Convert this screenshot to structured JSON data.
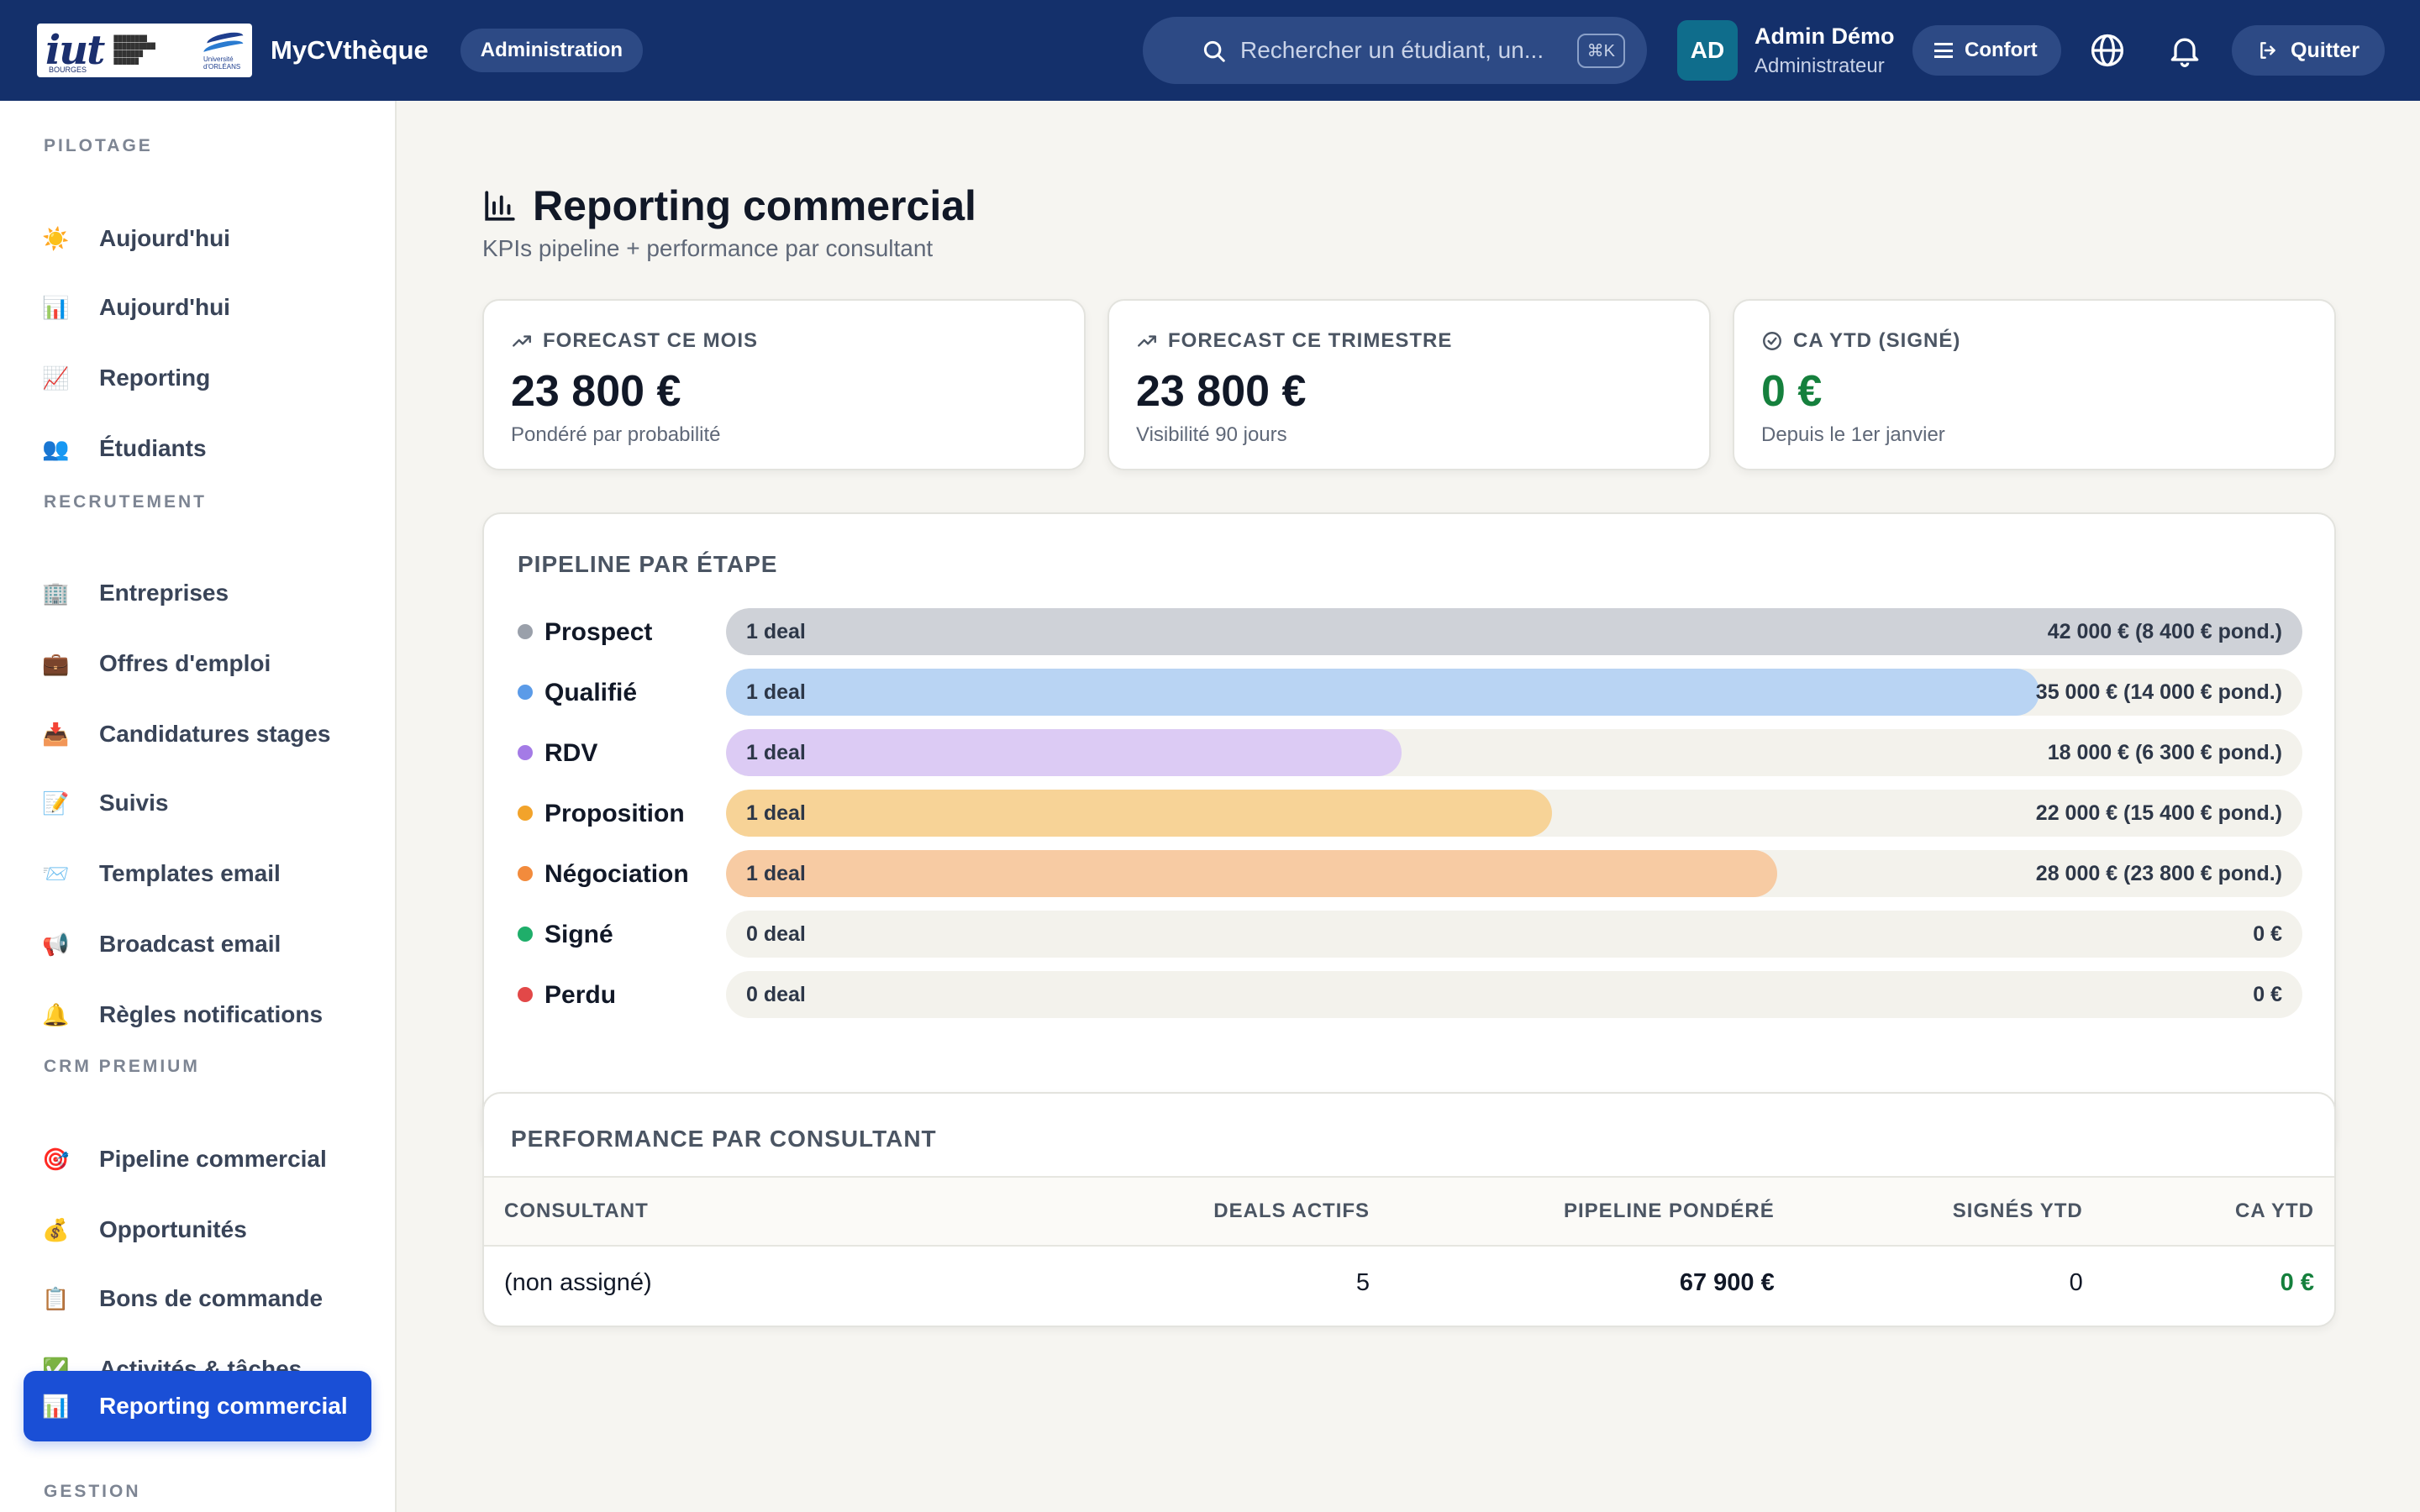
{
  "topbar": {
    "brand": "MyCVthèque",
    "badge": "Administration",
    "search_placeholder": "Rechercher un étudiant, un...",
    "search_shortcut": "⌘K",
    "avatar_initials": "AD",
    "user_name": "Admin Démo",
    "user_role": "Administrateur",
    "comfort_label": "Confort",
    "quit_label": "Quitter",
    "logo": {
      "text": "iut",
      "sub": "BOURGES",
      "university": "Université d'ORLÉANS"
    }
  },
  "sidebar": {
    "sections": [
      "PILOTAGE",
      "RECRUTEMENT",
      "CRM PREMIUM",
      "GESTION"
    ],
    "items": [
      {
        "icon": "☀️",
        "label": "Aujourd'hui"
      },
      {
        "icon": "📊",
        "label": "Aujourd'hui"
      },
      {
        "icon": "📈",
        "label": "Reporting"
      },
      {
        "icon": "👥",
        "label": "Étudiants"
      },
      {
        "icon": "🏢",
        "label": "Entreprises"
      },
      {
        "icon": "💼",
        "label": "Offres d'emploi"
      },
      {
        "icon": "📥",
        "label": "Candidatures stages"
      },
      {
        "icon": "📝",
        "label": "Suivis"
      },
      {
        "icon": "📨",
        "label": "Templates email"
      },
      {
        "icon": "📢",
        "label": "Broadcast email"
      },
      {
        "icon": "🔔",
        "label": "Règles notifications"
      },
      {
        "icon": "🎯",
        "label": "Pipeline commercial"
      },
      {
        "icon": "💰",
        "label": "Opportunités"
      },
      {
        "icon": "📋",
        "label": "Bons de commande"
      },
      {
        "icon": "✅",
        "label": "Activités & tâches"
      },
      {
        "icon": "📊",
        "label": "Reporting commercial"
      }
    ],
    "active_index": 15
  },
  "page": {
    "title": "Reporting commercial",
    "subtitle": "KPIs pipeline + performance par consultant"
  },
  "kpis": [
    {
      "label": "FORECAST CE MOIS",
      "value": "23 800 €",
      "note": "Pondéré par probabilité"
    },
    {
      "label": "FORECAST CE TRIMESTRE",
      "value": "23 800 €",
      "note": "Visibilité 90 jours"
    },
    {
      "label": "CA YTD (SIGNÉ)",
      "value": "0 €",
      "note": "Depuis le 1er janvier"
    }
  ],
  "pipeline": {
    "title": "PIPELINE PAR ÉTAPE",
    "stages": [
      {
        "name": "Prospect",
        "count": "1 deal",
        "amount": "42 000 €  (8 400 € pond.)",
        "fill": 1.0,
        "color": "#cfd2d8",
        "dot": "#9aa0aa"
      },
      {
        "name": "Qualifié",
        "count": "1 deal",
        "amount": "35 000 €  (14 000 € pond.)",
        "fill": 0.8333,
        "color": "#b9d4f3",
        "dot": "#5b9be8"
      },
      {
        "name": "RDV",
        "count": "1 deal",
        "amount": "18 000 €  (6 300 € pond.)",
        "fill": 0.4286,
        "color": "#dccbf4",
        "dot": "#a47be6"
      },
      {
        "name": "Proposition",
        "count": "1 deal",
        "amount": "22 000 €  (15 400 € pond.)",
        "fill": 0.5238,
        "color": "#f7d397",
        "dot": "#f2a32b"
      },
      {
        "name": "Négociation",
        "count": "1 deal",
        "amount": "28 000 €  (23 800 € pond.)",
        "fill": 0.6667,
        "color": "#f7cba3",
        "dot": "#f28b3c"
      },
      {
        "name": "Signé",
        "count": "0 deal",
        "amount": "0 €",
        "fill": 0,
        "color": "#a7e3c4",
        "dot": "#1fae6a"
      },
      {
        "name": "Perdu",
        "count": "0 deal",
        "amount": "0 €",
        "fill": 0,
        "color": "#f3b3b3",
        "dot": "#e24848"
      }
    ]
  },
  "performance": {
    "title": "PERFORMANCE PAR CONSULTANT",
    "columns": [
      "CONSULTANT",
      "DEALS ACTIFS",
      "PIPELINE PONDÉRÉ",
      "SIGNÉS YTD",
      "CA YTD"
    ],
    "rows": [
      {
        "consultant": "(non assigné)",
        "deals": "5",
        "pipeline": "67 900 €",
        "signed": "0",
        "ca": "0 €"
      }
    ]
  }
}
